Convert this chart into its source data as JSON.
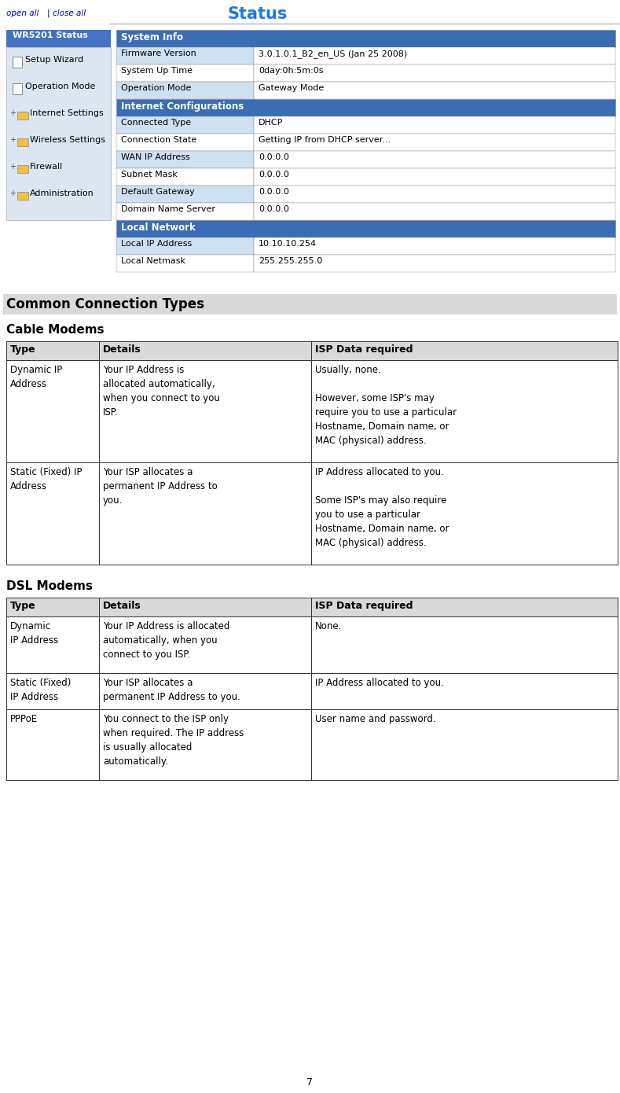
{
  "page_width": 7.89,
  "page_height": 13.9,
  "bg_color": "#ffffff",
  "sidebar_bg": "#dce6f1",
  "sidebar_title_bg": "#4472c4",
  "sidebar_title_text": "WR5201 Status",
  "sidebar_items": [
    "Setup Wizard",
    "Operation Mode",
    "Internet Settings",
    "Wireless Settings",
    "Firewall",
    "Administration"
  ],
  "status_title": "Status",
  "status_title_color": "#1f7adc",
  "table_header_bg": "#3a6db5",
  "table_header_text_color": "#ffffff",
  "table_row_light": "#cfe0f0",
  "table_row_white": "#ffffff",
  "table_border": "#888888",
  "status_sections": [
    {
      "header": "System Info",
      "rows": [
        [
          "Firmware Version",
          "3.0.1.0.1_B2_en_US (Jan 25 2008)"
        ],
        [
          "System Up Time",
          "0day:0h:5m:0s"
        ],
        [
          "Operation Mode",
          "Gateway Mode"
        ]
      ]
    },
    {
      "header": "Internet Configurations",
      "rows": [
        [
          "Connected Type",
          "DHCP"
        ],
        [
          "Connection State",
          "Getting IP from DHCP server..."
        ],
        [
          "WAN IP Address",
          "0.0.0.0"
        ],
        [
          "Subnet Mask",
          "0.0.0.0"
        ],
        [
          "Default Gateway",
          "0.0.0.0"
        ],
        [
          "Domain Name Server",
          "0.0.0.0"
        ]
      ]
    },
    {
      "header": "Local Network",
      "rows": [
        [
          "Local IP Address",
          "10.10.10.254"
        ],
        [
          "Local Netmask",
          "255.255.255.0"
        ]
      ]
    }
  ],
  "section_title": "Common Connection Types",
  "cable_subtitle": "Cable Modems",
  "cable_col_headers": [
    "Type",
    "Details",
    "ISP Data required"
  ],
  "cable_rows": [
    {
      "type": "Dynamic IP\nAddress",
      "details": "Your IP Address is\nallocated automatically,\nwhen you connect to you\nISP.",
      "isp": "Usually, none.\n\nHowever, some ISP's may\nrequire you to use a particular\nHostname, Domain name, or\nMAC (physical) address."
    },
    {
      "type": "Static (Fixed) IP\nAddress",
      "details": "Your ISP allocates a\npermanent IP Address to\nyou.",
      "isp": "IP Address allocated to you.\n\nSome ISP's may also require\nyou to use a particular\nHostname, Domain name, or\nMAC (physical) address."
    }
  ],
  "dsl_subtitle": "DSL Modems",
  "dsl_col_headers": [
    "Type",
    "Details",
    "ISP Data required"
  ],
  "dsl_rows": [
    {
      "type": "Dynamic\nIP Address",
      "details": "Your IP Address is allocated\nautomatically, when you\nconnect to you ISP.",
      "isp": "None."
    },
    {
      "type": "Static (Fixed)\nIP Address",
      "details": "Your ISP allocates a\npermanent IP Address to you.",
      "isp": "IP Address allocated to you."
    },
    {
      "type": "PPPoE",
      "details": "You connect to the ISP only\nwhen required. The IP address\nis usually allocated\nautomatically.",
      "isp": "User name and password."
    }
  ],
  "page_number": "7"
}
